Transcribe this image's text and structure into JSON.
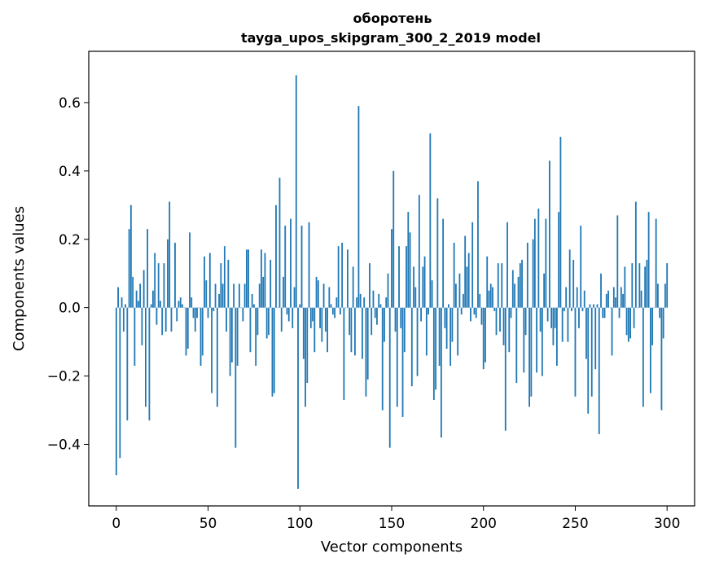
{
  "chart_data": {
    "type": "bar",
    "title": "оборотень",
    "subtitle": "tayga_upos_skipgram_300_2_2019 model",
    "xlabel": "Vector components",
    "ylabel": "Components values",
    "xlim": [
      -15,
      315
    ],
    "ylim": [
      -0.58,
      0.75
    ],
    "xticks": [
      0,
      50,
      100,
      150,
      200,
      250,
      300
    ],
    "yticks": [
      -0.4,
      -0.2,
      0.0,
      0.2,
      0.4,
      0.6
    ],
    "ytick_labels": [
      "−0.4",
      "−0.2",
      "0.0",
      "0.2",
      "0.4",
      "0.6"
    ],
    "bar_color": "#1f77b4",
    "values": [
      -0.49,
      0.06,
      -0.44,
      0.03,
      -0.07,
      0.01,
      -0.33,
      0.23,
      0.3,
      0.09,
      -0.17,
      0.05,
      0.02,
      0.07,
      -0.11,
      0.11,
      -0.29,
      0.23,
      -0.33,
      0.01,
      0.05,
      0.16,
      -0.05,
      0.13,
      0.02,
      -0.08,
      0.13,
      -0.07,
      0.2,
      0.31,
      -0.07,
      0.0,
      0.19,
      -0.04,
      0.02,
      0.03,
      0.01,
      0.0,
      -0.14,
      -0.12,
      0.22,
      0.03,
      -0.03,
      -0.07,
      -0.03,
      0.0,
      -0.17,
      -0.14,
      0.15,
      0.08,
      -0.03,
      0.16,
      -0.25,
      -0.01,
      0.07,
      -0.29,
      0.04,
      0.13,
      0.07,
      0.18,
      -0.07,
      0.14,
      -0.2,
      -0.16,
      0.07,
      -0.41,
      -0.17,
      0.07,
      0.0,
      -0.04,
      0.07,
      0.17,
      0.17,
      -0.13,
      0.04,
      0.01,
      -0.17,
      -0.08,
      0.07,
      0.17,
      0.09,
      0.16,
      -0.09,
      -0.08,
      0.14,
      -0.26,
      -0.25,
      0.3,
      0.0,
      0.38,
      -0.07,
      0.09,
      0.24,
      -0.02,
      -0.04,
      0.26,
      -0.06,
      0.06,
      0.68,
      -0.53,
      0.01,
      0.24,
      -0.15,
      -0.29,
      -0.22,
      0.25,
      -0.06,
      -0.04,
      -0.13,
      0.09,
      0.08,
      -0.06,
      -0.1,
      0.07,
      -0.07,
      -0.13,
      0.06,
      0.01,
      -0.02,
      -0.03,
      0.03,
      0.18,
      -0.02,
      0.19,
      -0.27,
      0.0,
      0.17,
      -0.08,
      -0.13,
      0.12,
      -0.14,
      0.03,
      0.59,
      0.04,
      -0.15,
      0.03,
      -0.26,
      -0.21,
      0.13,
      -0.08,
      0.05,
      -0.03,
      -0.05,
      0.04,
      0.01,
      -0.3,
      -0.1,
      0.03,
      0.1,
      -0.41,
      0.23,
      0.4,
      -0.07,
      -0.29,
      0.18,
      -0.06,
      -0.32,
      -0.13,
      0.18,
      0.28,
      0.22,
      -0.23,
      0.12,
      0.06,
      -0.2,
      0.33,
      -0.04,
      0.12,
      0.15,
      -0.14,
      -0.02,
      0.51,
      0.08,
      -0.27,
      -0.24,
      0.32,
      -0.17,
      -0.38,
      0.26,
      -0.06,
      -0.12,
      0.01,
      -0.17,
      -0.1,
      0.19,
      0.07,
      -0.14,
      0.1,
      -0.02,
      0.04,
      0.21,
      0.12,
      0.16,
      -0.04,
      0.25,
      -0.02,
      -0.03,
      0.37,
      0.04,
      -0.05,
      -0.18,
      -0.16,
      0.15,
      0.05,
      0.07,
      0.06,
      -0.01,
      -0.08,
      0.13,
      -0.07,
      0.13,
      -0.11,
      -0.36,
      0.25,
      -0.13,
      -0.03,
      0.11,
      0.07,
      -0.22,
      0.09,
      0.13,
      0.14,
      -0.19,
      -0.08,
      0.19,
      -0.29,
      -0.26,
      0.2,
      0.26,
      -0.19,
      0.29,
      -0.07,
      -0.2,
      0.1,
      0.26,
      -0.04,
      0.43,
      -0.06,
      -0.11,
      -0.06,
      -0.17,
      0.28,
      0.5,
      -0.1,
      -0.01,
      0.06,
      -0.1,
      0.17,
      -0.01,
      0.14,
      -0.26,
      0.06,
      -0.06,
      0.24,
      -0.01,
      0.05,
      -0.15,
      -0.31,
      0.01,
      -0.26,
      0.01,
      -0.18,
      0.01,
      -0.37,
      0.1,
      -0.03,
      -0.03,
      0.04,
      0.05,
      0.0,
      -0.14,
      0.06,
      0.03,
      0.27,
      -0.03,
      0.06,
      0.04,
      0.12,
      -0.08,
      -0.1,
      -0.09,
      0.13,
      -0.06,
      0.31,
      0.0,
      0.13,
      0.05,
      -0.29,
      0.12,
      0.14,
      0.28,
      -0.25,
      -0.11,
      0.0,
      0.26,
      0.07,
      -0.03,
      -0.3,
      -0.09,
      0.07,
      0.13
    ]
  }
}
